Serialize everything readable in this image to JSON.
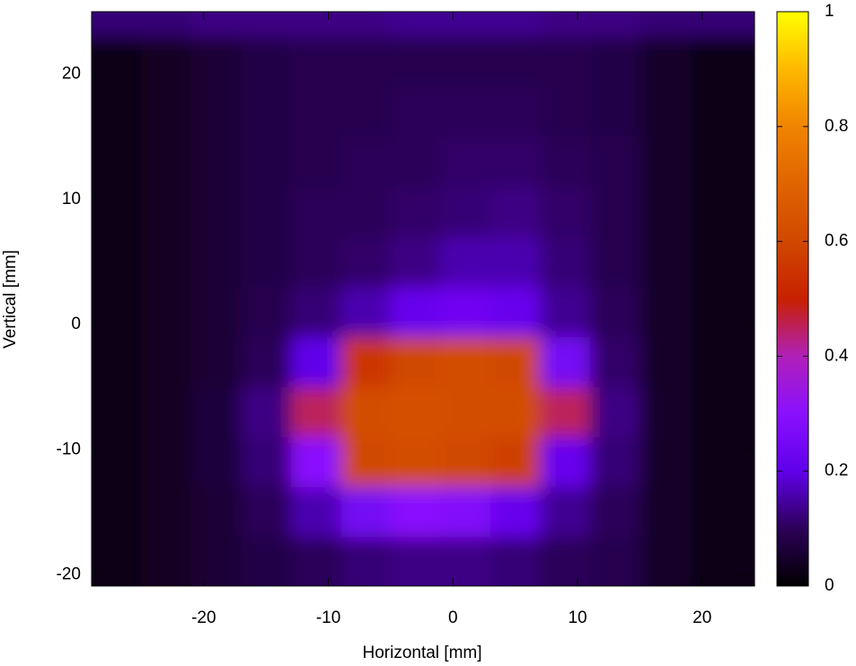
{
  "chart_data": {
    "type": "heatmap",
    "xlabel": "Horizontal [mm]",
    "ylabel": "Vertical [mm]",
    "x": [
      -27,
      -23,
      -19,
      -15,
      -11,
      -7,
      -3,
      1,
      5,
      9,
      13,
      17,
      21
    ],
    "y": [
      25,
      21,
      17,
      13,
      9,
      5,
      1,
      -3,
      -7,
      -11,
      -15,
      -19
    ],
    "z": [
      [
        0.12,
        0.12,
        0.13,
        0.13,
        0.13,
        0.13,
        0.14,
        0.14,
        0.14,
        0.13,
        0.13,
        0.12,
        0.12
      ],
      [
        0.02,
        0.04,
        0.06,
        0.08,
        0.09,
        0.09,
        0.09,
        0.09,
        0.09,
        0.09,
        0.08,
        0.05,
        0.02
      ],
      [
        0.02,
        0.04,
        0.06,
        0.08,
        0.09,
        0.09,
        0.1,
        0.1,
        0.1,
        0.09,
        0.08,
        0.05,
        0.02
      ],
      [
        0.02,
        0.04,
        0.06,
        0.08,
        0.09,
        0.1,
        0.1,
        0.11,
        0.11,
        0.1,
        0.09,
        0.05,
        0.02
      ],
      [
        0.02,
        0.04,
        0.06,
        0.08,
        0.1,
        0.1,
        0.11,
        0.12,
        0.13,
        0.11,
        0.09,
        0.05,
        0.02
      ],
      [
        0.02,
        0.04,
        0.06,
        0.08,
        0.1,
        0.11,
        0.13,
        0.16,
        0.16,
        0.12,
        0.09,
        0.05,
        0.02
      ],
      [
        0.02,
        0.04,
        0.06,
        0.09,
        0.12,
        0.16,
        0.22,
        0.24,
        0.22,
        0.14,
        0.1,
        0.05,
        0.02
      ],
      [
        0.02,
        0.04,
        0.06,
        0.1,
        0.2,
        0.55,
        0.6,
        0.62,
        0.6,
        0.25,
        0.11,
        0.05,
        0.02
      ],
      [
        0.02,
        0.04,
        0.07,
        0.13,
        0.45,
        0.62,
        0.63,
        0.62,
        0.62,
        0.45,
        0.13,
        0.05,
        0.02
      ],
      [
        0.02,
        0.04,
        0.07,
        0.12,
        0.3,
        0.6,
        0.62,
        0.6,
        0.58,
        0.22,
        0.12,
        0.05,
        0.02
      ],
      [
        0.02,
        0.04,
        0.06,
        0.1,
        0.16,
        0.25,
        0.3,
        0.28,
        0.22,
        0.14,
        0.1,
        0.05,
        0.02
      ],
      [
        0.02,
        0.04,
        0.06,
        0.08,
        0.1,
        0.12,
        0.13,
        0.13,
        0.12,
        0.1,
        0.09,
        0.05,
        0.02
      ]
    ],
    "xlim": [
      -29,
      24.2
    ],
    "ylim": [
      -20.9,
      25
    ],
    "xticks": [
      -20,
      -10,
      0,
      10,
      20
    ],
    "yticks": [
      -20,
      -10,
      0,
      10,
      20
    ],
    "zlim": [
      0,
      1
    ],
    "zticks": [
      0,
      0.2,
      0.4,
      0.6,
      0.8,
      1
    ],
    "colormap": [
      "#000000",
      "#2c0058",
      "#6000ea",
      "#8a10ff",
      "#b020b8",
      "#c82000",
      "#d04800",
      "#e06400",
      "#f08400",
      "#ffb800",
      "#ffff00"
    ]
  }
}
